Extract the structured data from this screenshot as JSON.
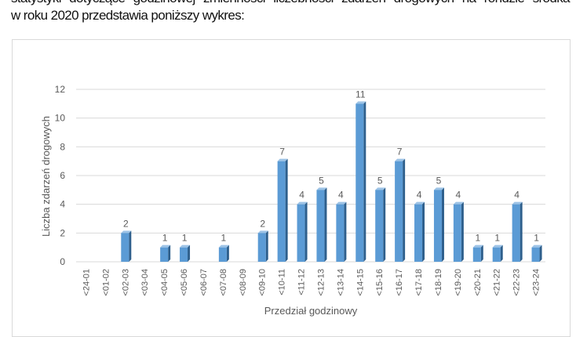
{
  "document": {
    "line1": "statystyki dotyczące godzinowej zmienności liczebności zdarzeń drogowych na rondzie środka",
    "line2": "w roku 2020 przedstawia poniższy wykres:"
  },
  "chart_data": {
    "type": "bar",
    "title": "",
    "xlabel": "Przedział godzinowy",
    "ylabel": "Liczba zdarzeń drogowych",
    "ylim": [
      0,
      12
    ],
    "yticks": [
      0,
      2,
      4,
      6,
      8,
      10,
      12
    ],
    "grid": true,
    "bar_color": "#5b9bd5",
    "categories": [
      "<24-01",
      "<01-02",
      "<02-03",
      "<03-04",
      "<04-05",
      "<05-06",
      "<06-07",
      "<07-08",
      "<08-09",
      "<09-10",
      "<10-11",
      "<11-12",
      "<12-13",
      "<13-14",
      "<14-15",
      "<15-16",
      "<16-17",
      "<17-18",
      "<18-19",
      "<19-20",
      "<20-21",
      "<21-22",
      "<22-23",
      "<23-24"
    ],
    "values": [
      0,
      0,
      2,
      0,
      1,
      1,
      0,
      1,
      0,
      2,
      7,
      4,
      5,
      4,
      11,
      5,
      7,
      4,
      5,
      4,
      1,
      1,
      4,
      1
    ]
  }
}
